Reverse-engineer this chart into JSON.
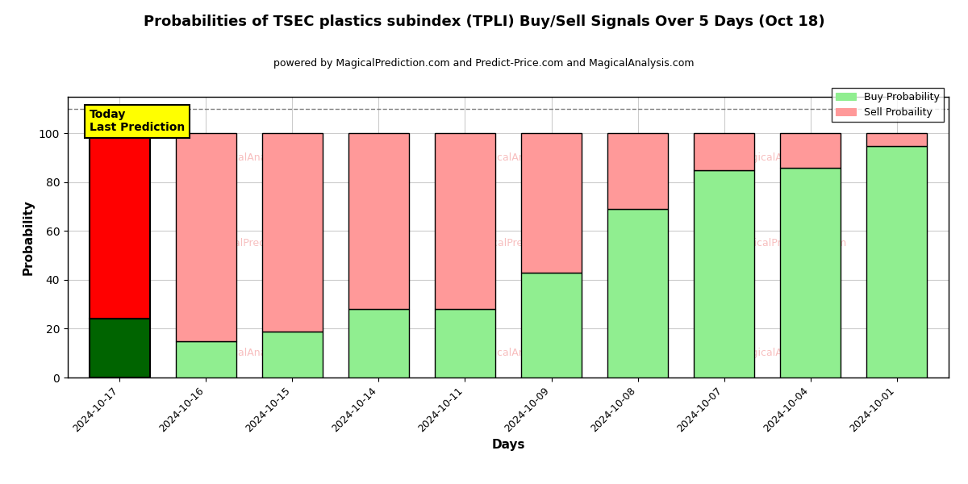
{
  "title": "Probabilities of TSEC plastics subindex (TPLI) Buy/Sell Signals Over 5 Days (Oct 18)",
  "subtitle": "powered by MagicalPrediction.com and Predict-Price.com and MagicalAnalysis.com",
  "xlabel": "Days",
  "ylabel": "Probability",
  "dates": [
    "2024-10-17",
    "2024-10-16",
    "2024-10-15",
    "2024-10-14",
    "2024-10-11",
    "2024-10-09",
    "2024-10-08",
    "2024-10-07",
    "2024-10-04",
    "2024-10-01"
  ],
  "buy_values": [
    24,
    15,
    19,
    28,
    28,
    43,
    69,
    85,
    86,
    95
  ],
  "sell_values": [
    76,
    85,
    81,
    72,
    72,
    57,
    31,
    15,
    14,
    5
  ],
  "today_bar_buy_color": "#006400",
  "today_bar_sell_color": "#FF0000",
  "buy_color": "#90EE90",
  "sell_color": "#FF9999",
  "today_label_bg": "#FFFF00",
  "today_annotation": "Today\nLast Prediction",
  "dashed_line_y": 110,
  "ylim": [
    0,
    115
  ],
  "yticks": [
    0,
    20,
    40,
    60,
    80,
    100
  ],
  "bar_width": 0.7,
  "legend_buy_label": "Buy Probability",
  "legend_sell_label": "Sell Probaility",
  "background_color": "#ffffff",
  "grid_color": "#cccccc",
  "watermark1": "MagicalAnalysis.com",
  "watermark2": "MagicalPrediction.com"
}
